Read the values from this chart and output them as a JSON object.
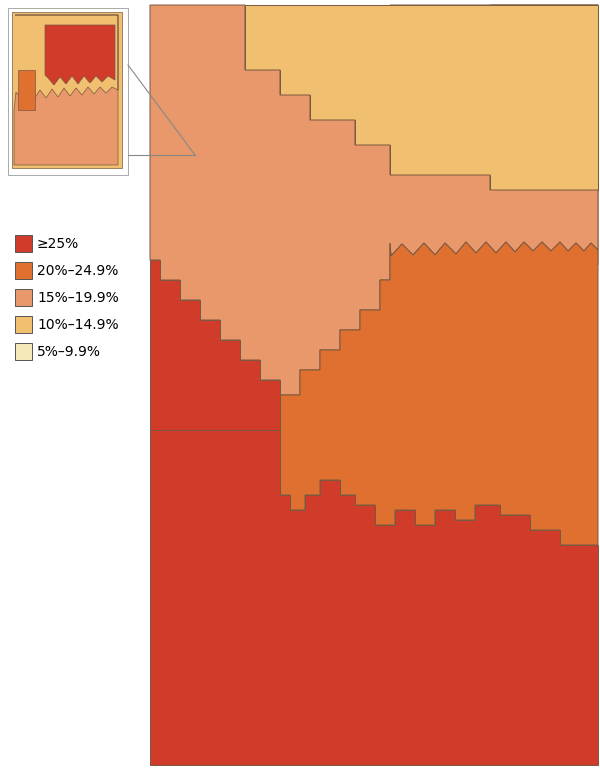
{
  "colors": {
    "ge25": "#d13b2a",
    "20_25": "#e07030",
    "15_20": "#e8986a",
    "10_15": "#f0c070",
    "5_10": "#f5e8b8"
  },
  "legend": [
    {
      "label": "≥25%",
      "color": "#d13b2a"
    },
    {
      "label": "20%–24.9%",
      "color": "#e07030"
    },
    {
      "label": "15%–19.9%",
      "color": "#e8986a"
    },
    {
      "label": "10%–14.9%",
      "color": "#f0c070"
    },
    {
      "label": "5%–9.9%",
      "color": "#f5e8b8"
    }
  ],
  "background": "#ffffff",
  "ec": "#7a5840",
  "lw": 0.7
}
